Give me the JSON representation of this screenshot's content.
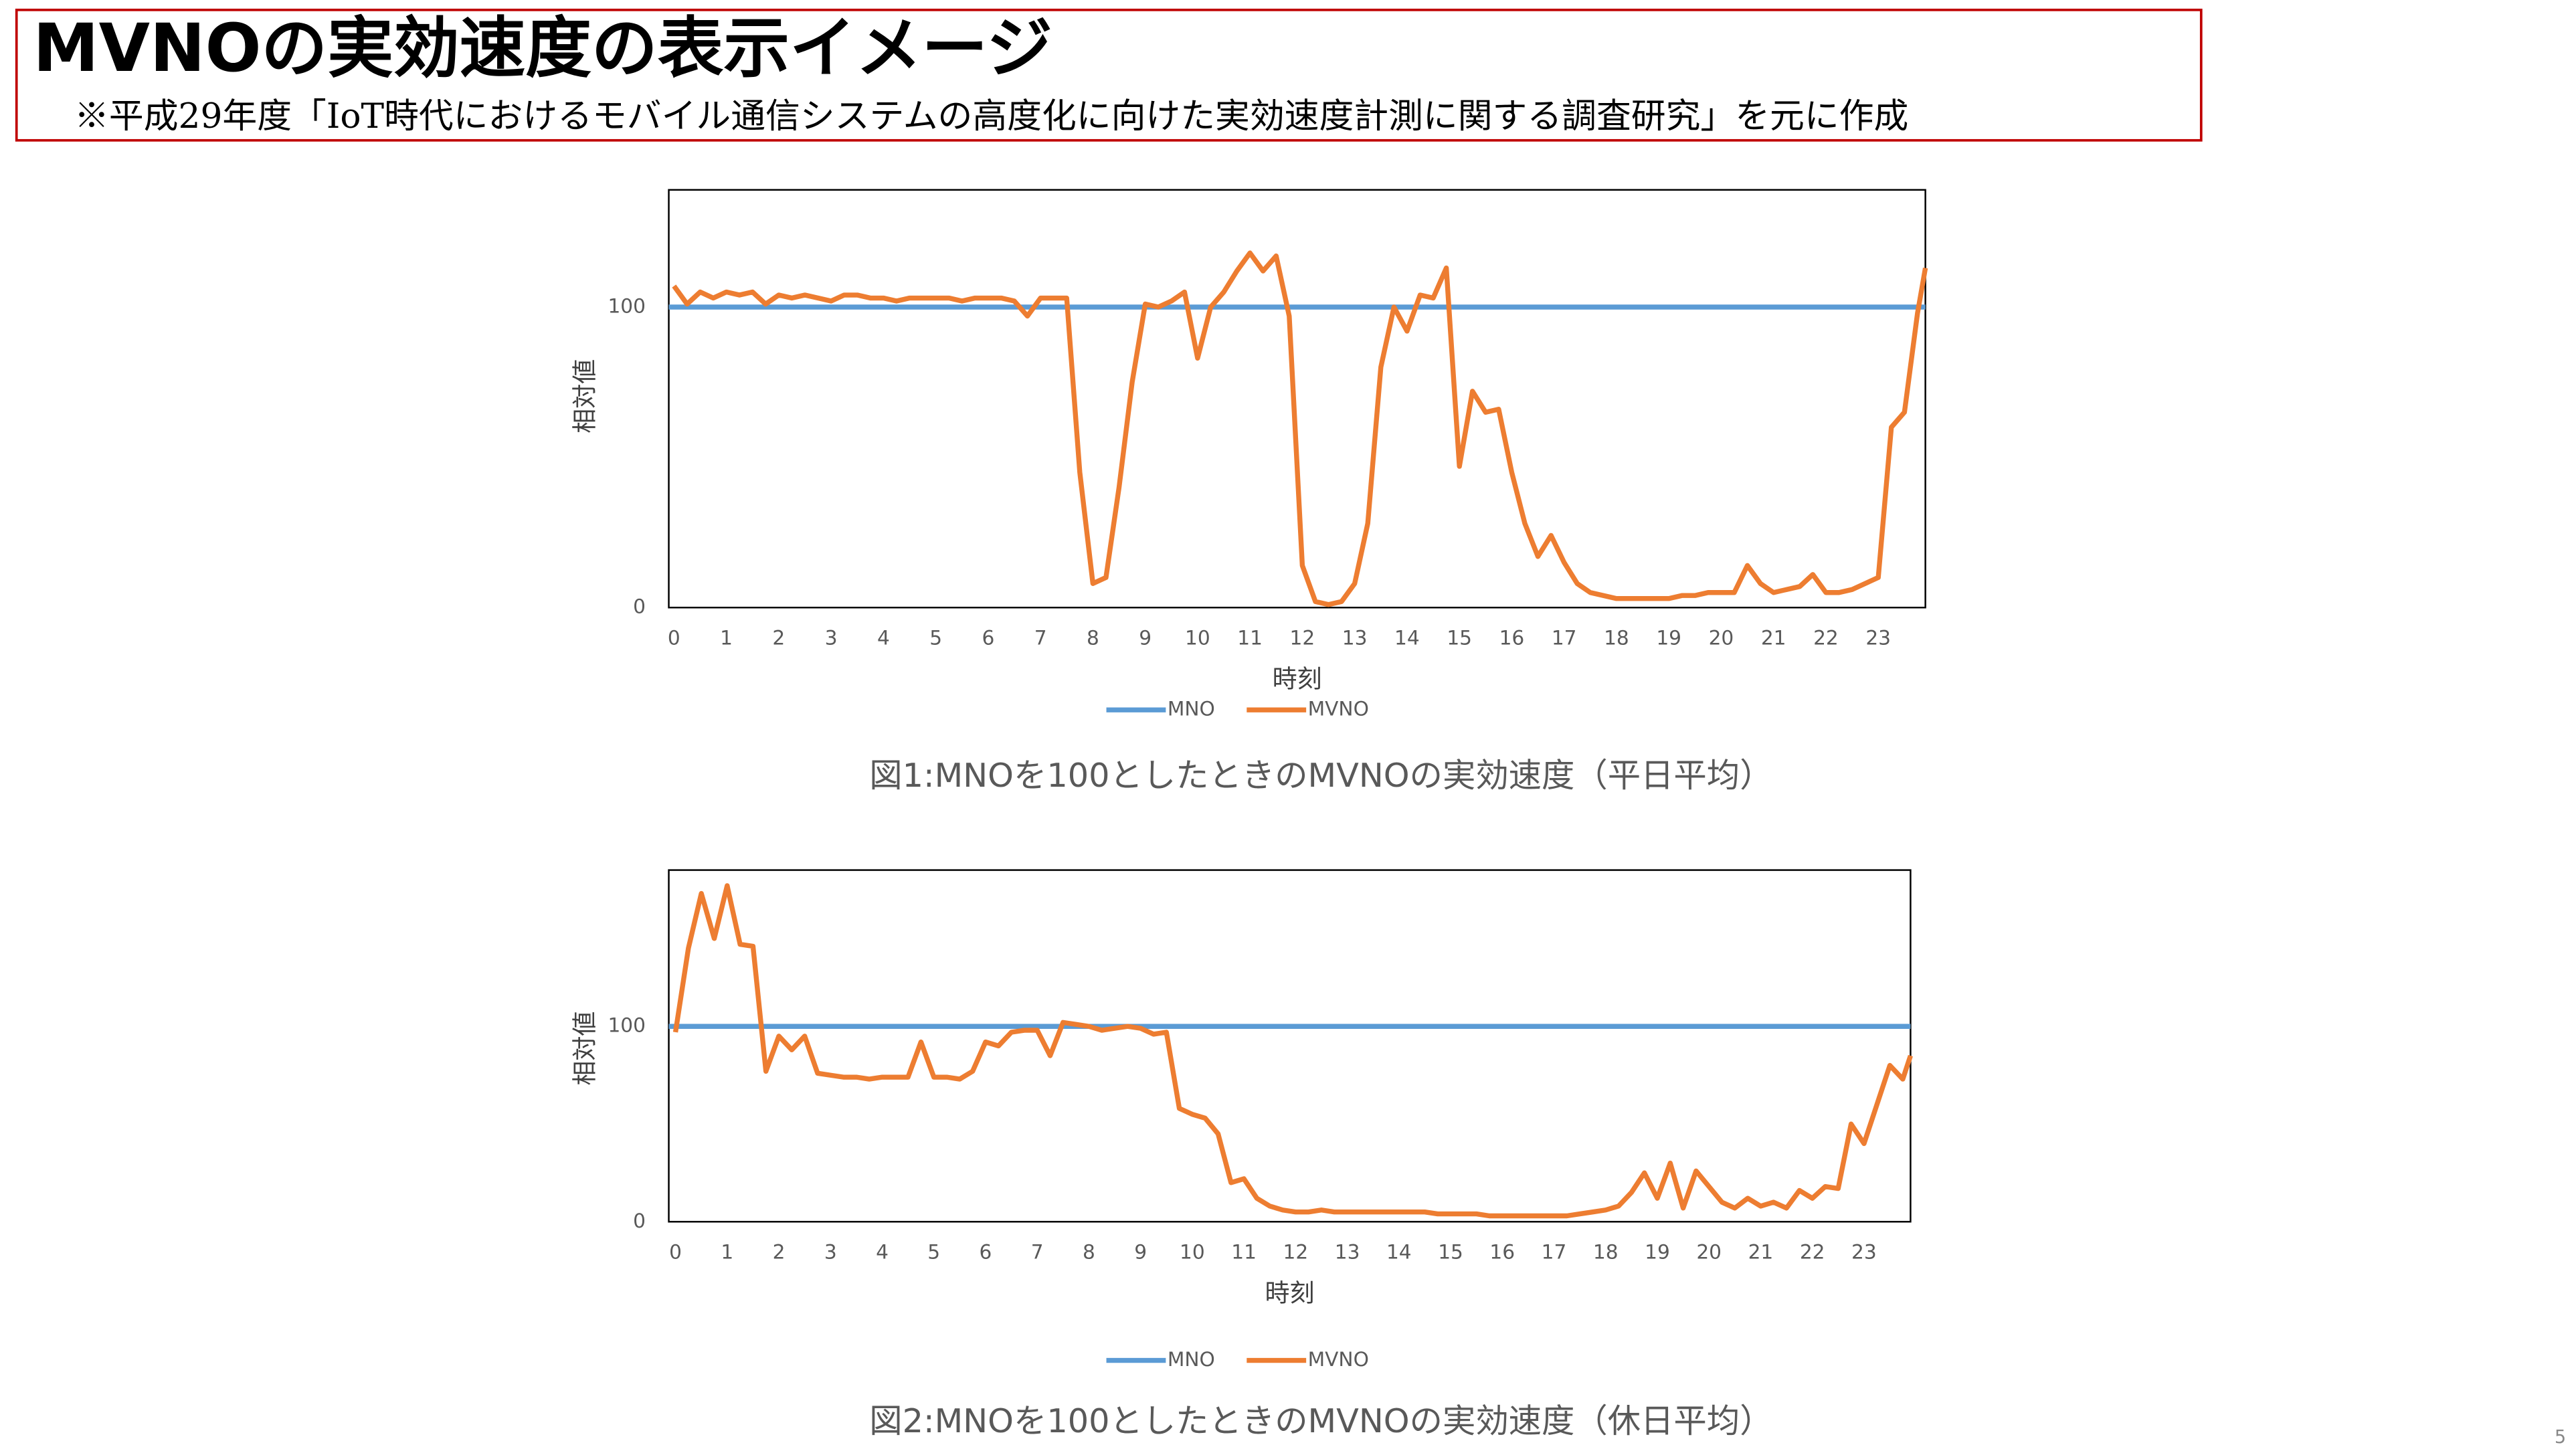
{
  "title": "MVNOの実効速度の表示イメージ",
  "note": "※平成29年度「IoT時代におけるモバイル通信システムの高度化に向けた実効速度計測に関する調査研究」を元に作成",
  "page_number": "5",
  "chart_data": [
    {
      "type": "line",
      "caption": "図1:MNOを100としたときのMVNOの実効速度（平日平均）",
      "xlabel": "時刻",
      "ylabel": "相対値",
      "xlim": [
        -0.1,
        23.9
      ],
      "ylim": [
        0,
        139
      ],
      "xticks": [
        0,
        1,
        2,
        3,
        4,
        5,
        6,
        7,
        8,
        9,
        10,
        11,
        12,
        13,
        14,
        15,
        16,
        17,
        18,
        19,
        20,
        21,
        22,
        23
      ],
      "yticks": [
        0,
        100
      ],
      "series": [
        {
          "name": "MNO",
          "color": "#5b9bd5",
          "x": [
            -0.1,
            23.9
          ],
          "values": [
            100,
            100
          ]
        },
        {
          "name": "MVNO",
          "color": "#ed7d31",
          "x": [
            0,
            0.25,
            0.5,
            0.75,
            1,
            1.25,
            1.5,
            1.75,
            2,
            2.25,
            2.5,
            2.75,
            3,
            3.25,
            3.5,
            3.75,
            4,
            4.25,
            4.5,
            4.75,
            5,
            5.25,
            5.5,
            5.75,
            6,
            6.25,
            6.5,
            6.75,
            7,
            7.25,
            7.5,
            7.75,
            8,
            8.25,
            8.5,
            8.75,
            9,
            9.25,
            9.5,
            9.75,
            10,
            10.25,
            10.5,
            10.75,
            11,
            11.25,
            11.5,
            11.75,
            12,
            12.25,
            12.5,
            12.75,
            13,
            13.25,
            13.5,
            13.75,
            14,
            14.25,
            14.5,
            14.75,
            15,
            15.25,
            15.5,
            15.75,
            16,
            16.25,
            16.5,
            16.75,
            17,
            17.25,
            17.5,
            17.75,
            18,
            18.25,
            18.5,
            18.75,
            19,
            19.25,
            19.5,
            19.75,
            20,
            20.25,
            20.5,
            20.75,
            21,
            21.25,
            21.5,
            21.75,
            22,
            22.25,
            22.5,
            22.75,
            23,
            23.25,
            23.5,
            23.75,
            23.9
          ],
          "values": [
            107,
            101,
            105,
            103,
            105,
            104,
            105,
            101,
            104,
            103,
            104,
            103,
            102,
            104,
            104,
            103,
            103,
            102,
            103,
            103,
            103,
            103,
            102,
            103,
            103,
            103,
            102,
            97,
            103,
            103,
            103,
            45,
            8,
            10,
            40,
            75,
            101,
            100,
            102,
            105,
            83,
            100,
            105,
            112,
            118,
            112,
            117,
            97,
            14,
            2,
            1,
            2,
            8,
            28,
            80,
            100,
            92,
            104,
            103,
            113,
            47,
            72,
            65,
            66,
            45,
            28,
            17,
            24,
            15,
            8,
            5,
            4,
            3,
            3,
            3,
            3,
            3,
            4,
            4,
            5,
            5,
            5,
            14,
            8,
            5,
            6,
            7,
            11,
            5,
            5,
            6,
            8,
            10,
            60,
            65,
            98,
            113
          ]
        }
      ]
    },
    {
      "type": "line",
      "caption": "図2:MNOを100としたときのMVNOの実効速度（休日平均）",
      "xlabel": "時刻",
      "ylabel": "相対値",
      "xlim": [
        -0.13,
        23.9
      ],
      "ylim": [
        0,
        180
      ],
      "xticks": [
        0,
        1,
        2,
        3,
        4,
        5,
        6,
        7,
        8,
        9,
        10,
        11,
        12,
        13,
        14,
        15,
        16,
        17,
        18,
        19,
        20,
        21,
        22,
        23
      ],
      "yticks": [
        0,
        100
      ],
      "series": [
        {
          "name": "MNO",
          "color": "#5b9bd5",
          "x": [
            -0.13,
            23.9
          ],
          "values": [
            100,
            100
          ]
        },
        {
          "name": "MVNO",
          "color": "#ed7d31",
          "x": [
            0,
            0.25,
            0.5,
            0.75,
            1,
            1.25,
            1.5,
            1.75,
            2,
            2.25,
            2.5,
            2.75,
            3,
            3.25,
            3.5,
            3.75,
            4,
            4.25,
            4.5,
            4.75,
            5,
            5.25,
            5.5,
            5.75,
            6,
            6.25,
            6.5,
            6.75,
            7,
            7.25,
            7.5,
            7.75,
            8,
            8.25,
            8.5,
            8.75,
            9,
            9.25,
            9.5,
            9.75,
            10,
            10.25,
            10.5,
            10.75,
            11,
            11.25,
            11.5,
            11.75,
            12,
            12.25,
            12.5,
            12.75,
            13,
            13.25,
            13.5,
            13.75,
            14,
            14.25,
            14.5,
            14.75,
            15,
            15.25,
            15.5,
            15.75,
            16,
            16.25,
            16.5,
            16.75,
            17,
            17.25,
            17.5,
            17.75,
            18,
            18.25,
            18.5,
            18.75,
            19,
            19.25,
            19.5,
            19.75,
            20,
            20.25,
            20.5,
            20.75,
            21,
            21.25,
            21.5,
            21.75,
            22,
            22.25,
            22.5,
            22.75,
            23,
            23.25,
            23.5,
            23.75,
            23.9
          ],
          "values": [
            97,
            140,
            168,
            145,
            172,
            142,
            141,
            77,
            95,
            88,
            95,
            76,
            75,
            74,
            74,
            73,
            74,
            74,
            74,
            92,
            74,
            74,
            73,
            77,
            92,
            90,
            97,
            98,
            98,
            85,
            102,
            101,
            100,
            98,
            99,
            100,
            99,
            96,
            97,
            58,
            55,
            53,
            45,
            20,
            22,
            12,
            8,
            6,
            5,
            5,
            6,
            5,
            5,
            5,
            5,
            5,
            5,
            5,
            5,
            4,
            4,
            4,
            4,
            3,
            3,
            3,
            3,
            3,
            3,
            3,
            4,
            5,
            6,
            8,
            15,
            25,
            12,
            30,
            7,
            26,
            18,
            10,
            7,
            12,
            8,
            10,
            7,
            16,
            12,
            18,
            17,
            50,
            40,
            60,
            80,
            73,
            85
          ]
        }
      ]
    }
  ]
}
